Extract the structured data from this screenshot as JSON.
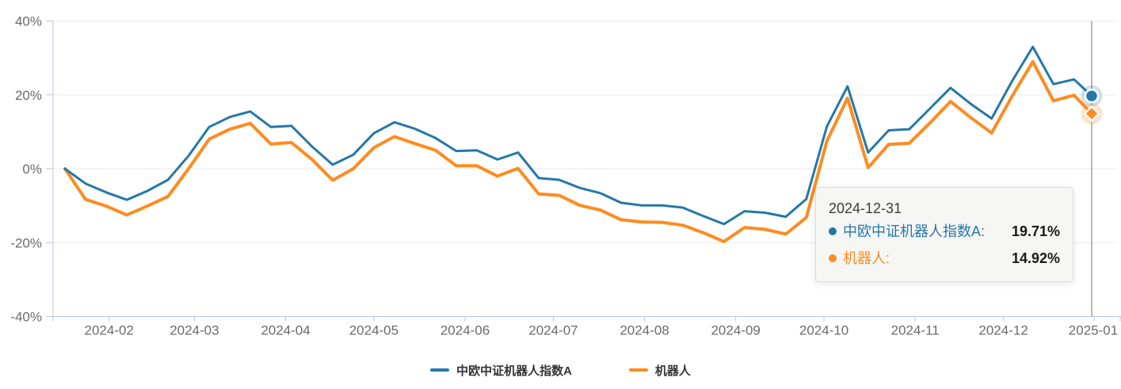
{
  "chart_data": {
    "type": "line",
    "title": "",
    "xlabel": "",
    "ylabel": "",
    "ylim": [
      -40,
      40
    ],
    "grid": "horizontal",
    "legend_position": "bottom",
    "x": [
      "2024-01-17",
      "2024-01-24",
      "2024-01-31",
      "2024-02-07",
      "2024-02-14",
      "2024-02-21",
      "2024-02-28",
      "2024-03-06",
      "2024-03-13",
      "2024-03-20",
      "2024-03-27",
      "2024-04-03",
      "2024-04-10",
      "2024-04-17",
      "2024-04-24",
      "2024-05-01",
      "2024-05-08",
      "2024-05-15",
      "2024-05-22",
      "2024-05-29",
      "2024-06-05",
      "2024-06-12",
      "2024-06-19",
      "2024-06-26",
      "2024-07-03",
      "2024-07-10",
      "2024-07-17",
      "2024-07-24",
      "2024-07-31",
      "2024-08-07",
      "2024-08-14",
      "2024-08-21",
      "2024-08-28",
      "2024-09-04",
      "2024-09-11",
      "2024-09-18",
      "2024-09-25",
      "2024-10-02",
      "2024-10-09",
      "2024-10-16",
      "2024-10-23",
      "2024-10-30",
      "2024-11-06",
      "2024-11-13",
      "2024-11-20",
      "2024-11-27",
      "2024-12-04",
      "2024-12-11",
      "2024-12-18",
      "2024-12-25",
      "2024-12-31"
    ],
    "series": [
      {
        "name": "中欧中证机器人指数A",
        "color": "#2478a8",
        "marker": "circle",
        "line_width": 3,
        "values": [
          0.0,
          -4.0,
          -6.4,
          -8.4,
          -6.0,
          -3.0,
          3.5,
          11.3,
          14.0,
          15.5,
          11.3,
          11.6,
          6.0,
          1.1,
          3.8,
          9.6,
          12.6,
          10.8,
          8.3,
          4.8,
          5.0,
          2.5,
          4.4,
          -2.5,
          -3.0,
          -5.2,
          -6.6,
          -9.2,
          -9.9,
          -9.9,
          -10.5,
          -12.8,
          -15.0,
          -11.5,
          -11.9,
          -13.0,
          -8.2,
          11.5,
          22.3,
          4.4,
          10.4,
          10.7,
          16.3,
          21.9,
          17.5,
          13.6,
          23.8,
          33.0,
          22.9,
          24.2,
          19.71
        ]
      },
      {
        "name": "机器人",
        "color": "#ff8b1f",
        "marker": "diamond",
        "line_width": 4,
        "values": [
          0.0,
          -8.3,
          -10.1,
          -12.5,
          -10.1,
          -7.5,
          0.0,
          8.0,
          10.7,
          12.3,
          6.7,
          7.1,
          2.5,
          -3.1,
          0.0,
          5.7,
          8.7,
          6.8,
          5.0,
          0.8,
          0.8,
          -2.0,
          0.1,
          -6.8,
          -7.2,
          -9.9,
          -11.2,
          -13.8,
          -14.4,
          -14.5,
          -15.3,
          -17.3,
          -19.7,
          -15.9,
          -16.4,
          -17.7,
          -13.2,
          7.5,
          19.1,
          0.3,
          6.6,
          6.9,
          12.4,
          18.2,
          13.8,
          9.7,
          19.7,
          29.0,
          18.4,
          19.9,
          14.92
        ]
      }
    ],
    "y_tick_labels": [
      "40%",
      "20%",
      "0%",
      "-20%",
      "-40%"
    ],
    "y_tick_values": [
      40,
      20,
      0,
      -20,
      -40
    ],
    "x_tick_labels": [
      "2024-02",
      "2024-03",
      "2024-04",
      "2024-05",
      "2024-06",
      "2024-07",
      "2024-08",
      "2024-09",
      "2024-10",
      "2024-11",
      "2024-12",
      "2025-01"
    ],
    "crosshair_date": "2024-12-31",
    "highlighted_point": {
      "date": "2024-12-31",
      "values": [
        19.71,
        14.92
      ]
    }
  },
  "tooltip": {
    "date": "2024-12-31",
    "rows": [
      {
        "label": "中欧中证机器人指数A:",
        "value": "19.71%",
        "color": "#2478a8"
      },
      {
        "label": "机器人:",
        "value": "14.92%",
        "color": "#ff8b1f"
      }
    ]
  },
  "legend": {
    "items": [
      {
        "label": "中欧中证机器人指数A",
        "color": "#2478a8"
      },
      {
        "label": "机器人",
        "color": "#ff8b1f"
      }
    ]
  },
  "colors": {
    "grid": "#eaeaea",
    "axis": "#b5c7e3",
    "tick_text": "#6b6b6b",
    "crosshair": "#999999",
    "halo_blue": "rgba(36,120,168,0.22)",
    "halo_orange": "rgba(255,139,31,0.25)",
    "marker_ring": "#ffffff"
  }
}
